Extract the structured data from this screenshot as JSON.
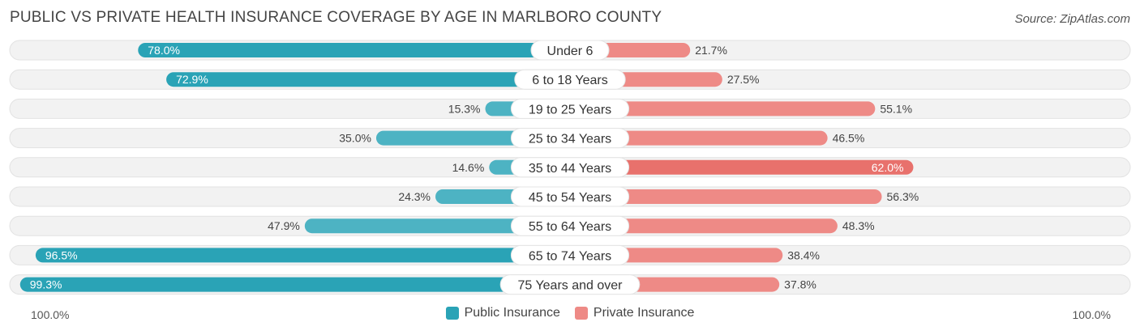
{
  "title": "PUBLIC VS PRIVATE HEALTH INSURANCE COVERAGE BY AGE IN MARLBORO COUNTY",
  "source": "Source: ZipAtlas.com",
  "axis": {
    "left_label": "100.0%",
    "right_label": "100.0%"
  },
  "colors": {
    "public": "#4db3c3",
    "public_strong": "#2aa3b6",
    "private": "#ee8a86",
    "private_strong": "#e8716c",
    "track": "#efefef"
  },
  "chart_data": {
    "type": "bar",
    "orientation": "diverging-horizontal",
    "categories": [
      "Under 6",
      "6 to 18 Years",
      "19 to 25 Years",
      "25 to 34 Years",
      "35 to 44 Years",
      "45 to 54 Years",
      "55 to 64 Years",
      "65 to 74 Years",
      "75 Years and over"
    ],
    "series": [
      {
        "name": "Public Insurance",
        "values": [
          78.0,
          72.9,
          15.3,
          35.0,
          14.6,
          24.3,
          47.9,
          96.5,
          99.3
        ]
      },
      {
        "name": "Private Insurance",
        "values": [
          21.7,
          27.5,
          55.1,
          46.5,
          62.0,
          56.3,
          48.3,
          38.4,
          37.8
        ]
      }
    ],
    "value_labels_public": [
      "78.0%",
      "72.9%",
      "15.3%",
      "35.0%",
      "14.6%",
      "24.3%",
      "47.9%",
      "96.5%",
      "99.3%"
    ],
    "value_labels_private": [
      "21.7%",
      "27.5%",
      "55.1%",
      "46.5%",
      "62.0%",
      "56.3%",
      "48.3%",
      "38.4%",
      "37.8%"
    ],
    "xlim": [
      -100,
      100
    ],
    "legend_position": "bottom-center",
    "grid": false
  },
  "legend": {
    "public": "Public Insurance",
    "private": "Private Insurance"
  }
}
